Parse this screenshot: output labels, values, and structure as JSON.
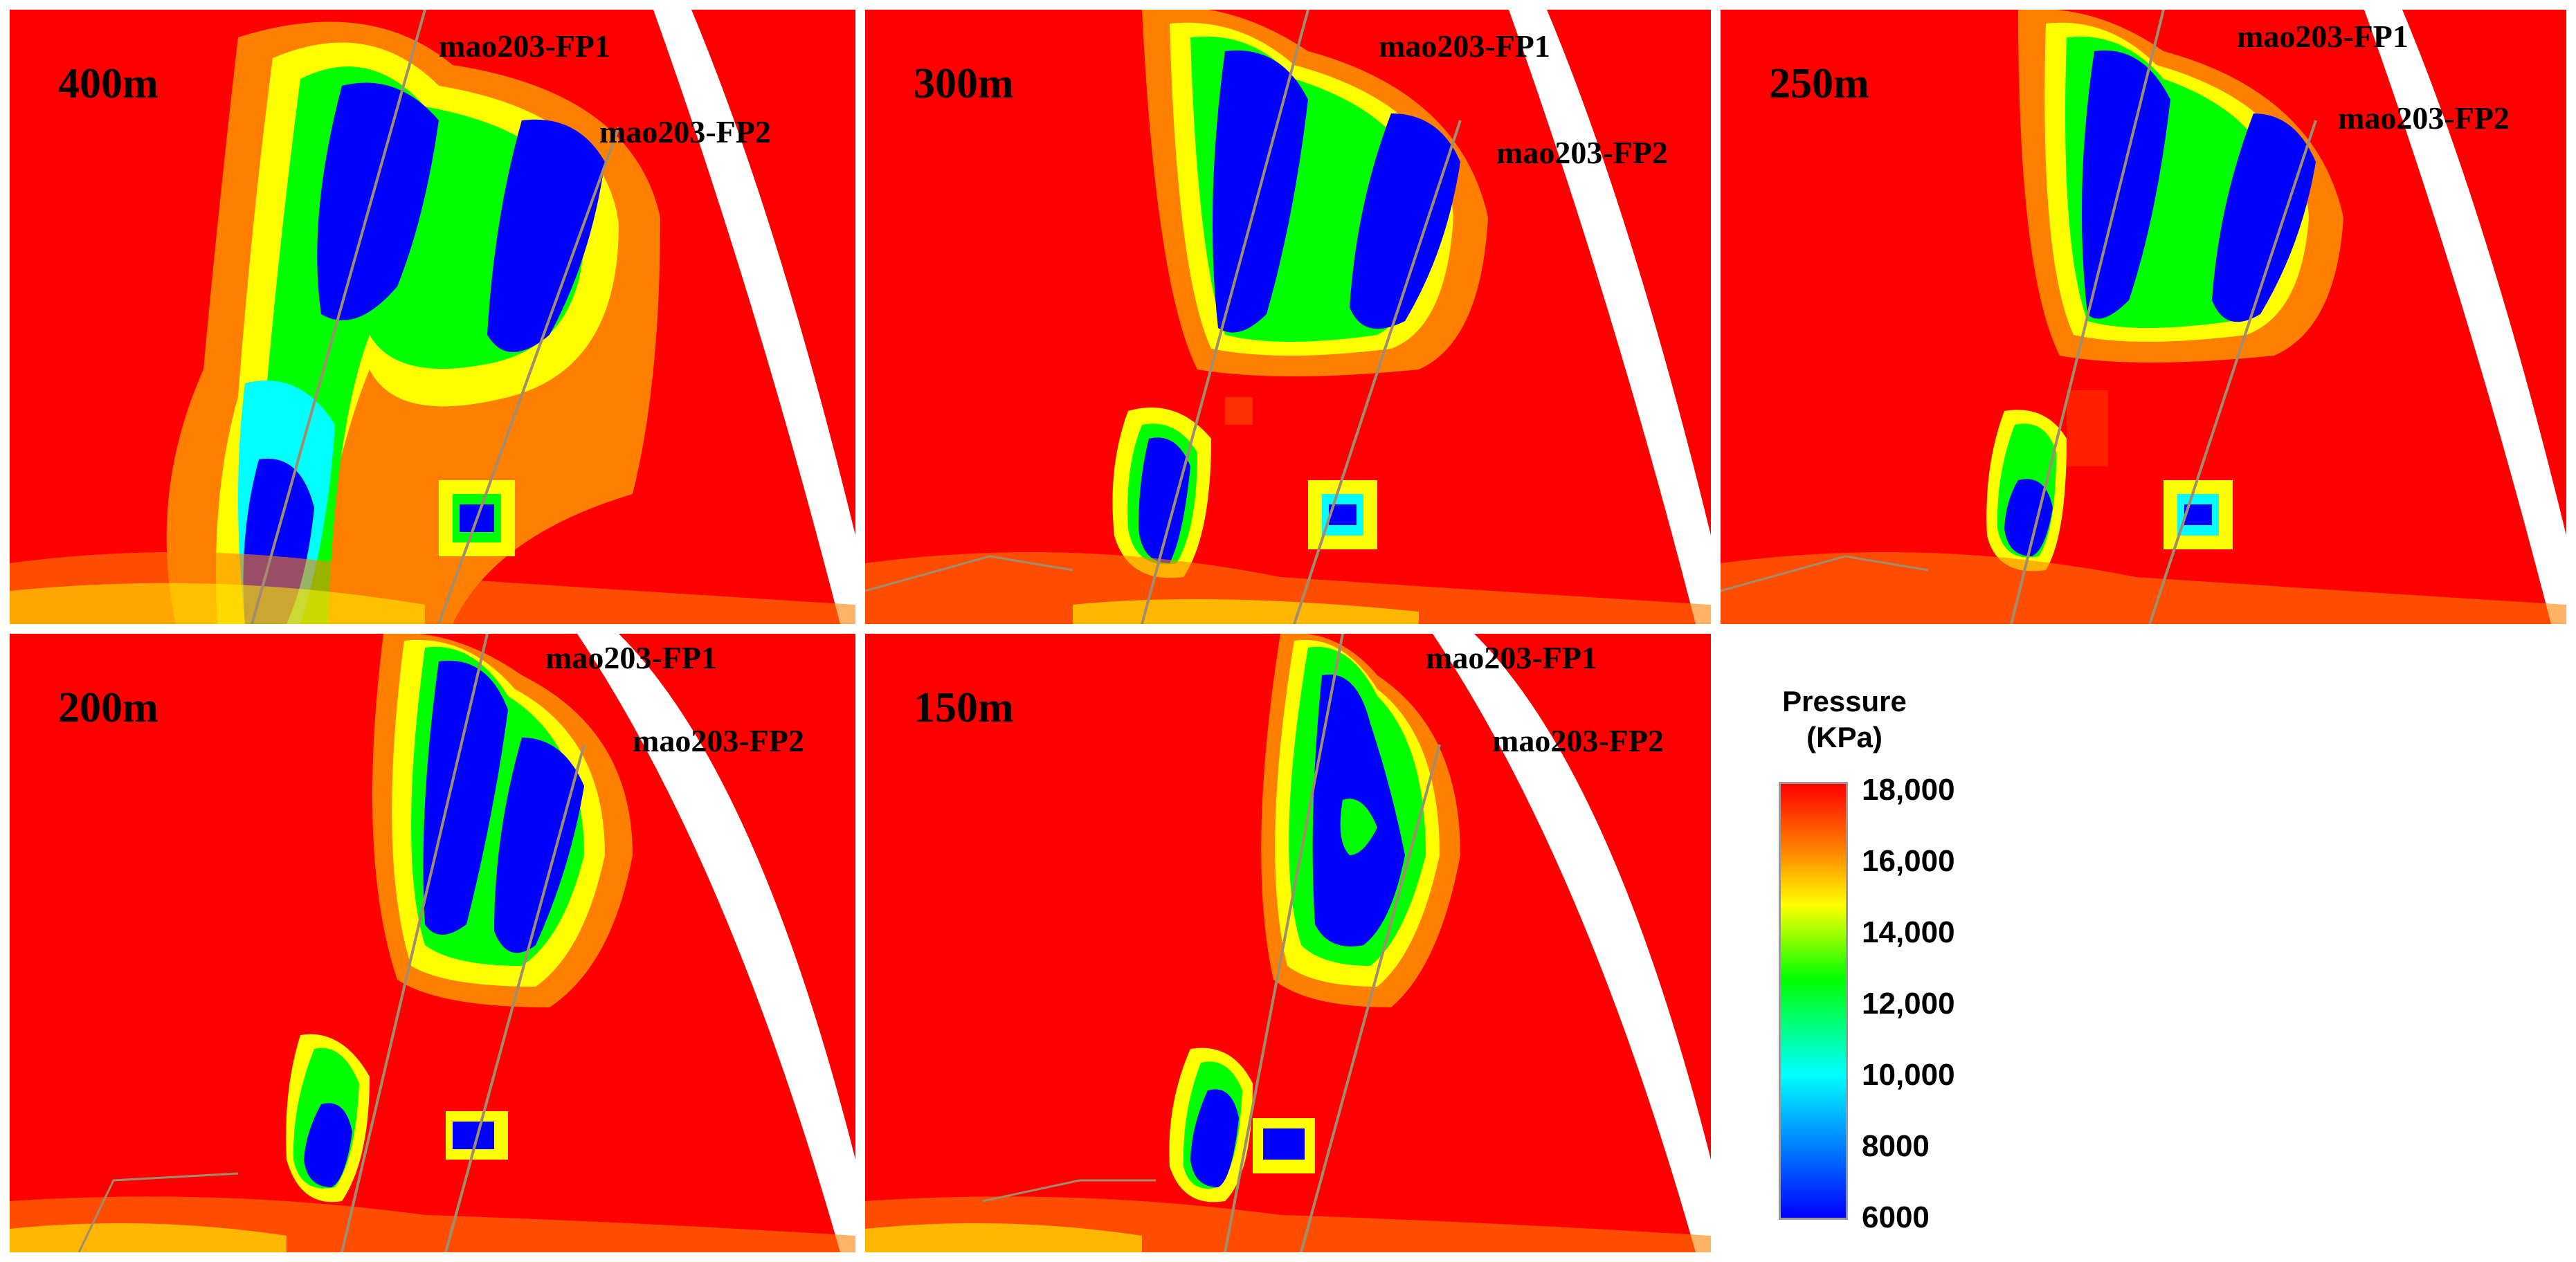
{
  "panels": [
    {
      "label": "400m",
      "well1": "mao203-FP1",
      "well2": "mao203-FP2"
    },
    {
      "label": "300m",
      "well1": "mao203-FP1",
      "well2": "mao203-FP2"
    },
    {
      "label": "250m",
      "well1": "mao203-FP1",
      "well2": "mao203-FP2"
    },
    {
      "label": "200m",
      "well1": "mao203-FP1",
      "well2": "mao203-FP2"
    },
    {
      "label": "150m",
      "well1": "mao203-FP1",
      "well2": "mao203-FP2"
    }
  ],
  "legend": {
    "title_line1": "Pressure",
    "title_line2": "(KPa)",
    "ticks": [
      "18,000",
      "16,000",
      "14,000",
      "12,000",
      "10,000",
      "8000",
      "6000"
    ]
  },
  "colors": {
    "background": "#ff0000",
    "low": "#0000ff",
    "mid": "#00ff00",
    "high": "#ff0000"
  }
}
